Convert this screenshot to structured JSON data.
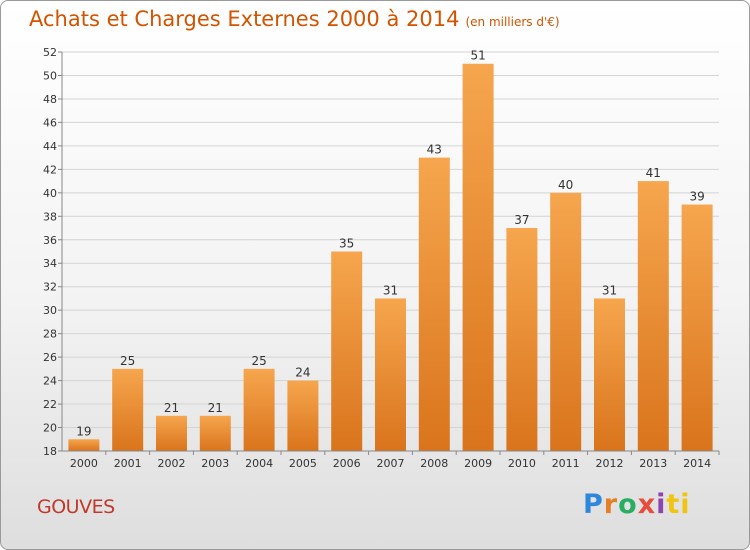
{
  "header": {
    "title": "Achats et Charges Externes 2000 à 2014",
    "unit": "(en milliers d'€)"
  },
  "footer": {
    "commune": "GOUVES",
    "logo": "Proxiti"
  },
  "colors": {
    "bar_light": "#f6a64e",
    "bar_dark": "#d9741c",
    "title": "#d35400",
    "commune": "#c0392b"
  },
  "chart_data": {
    "type": "bar",
    "title": "Achats et Charges Externes 2000 à 2014",
    "subtitle": "(en milliers d'€)",
    "xlabel": "",
    "ylabel": "",
    "categories": [
      "2000",
      "2001",
      "2002",
      "2003",
      "2004",
      "2005",
      "2006",
      "2007",
      "2008",
      "2009",
      "2010",
      "2011",
      "2012",
      "2013",
      "2014"
    ],
    "values": [
      19,
      25,
      21,
      21,
      25,
      24,
      35,
      31,
      43,
      51,
      37,
      40,
      31,
      41,
      39
    ],
    "ylim": [
      18,
      52
    ],
    "yticks": [
      18,
      20,
      22,
      24,
      26,
      28,
      30,
      32,
      34,
      36,
      38,
      40,
      42,
      44,
      46,
      48,
      50,
      52
    ],
    "grid": "horizontal",
    "data_labels": true
  }
}
